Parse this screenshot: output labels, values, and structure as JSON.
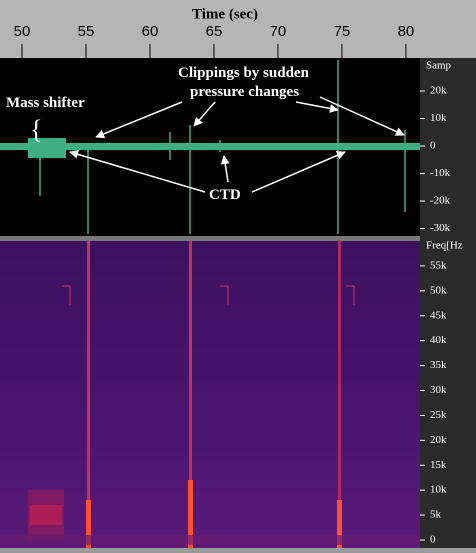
{
  "time_axis": {
    "title": "Time (sec)",
    "xlim": [
      48.28,
      81.1
    ],
    "ticks": [
      50,
      55,
      60,
      65,
      70,
      75,
      80
    ]
  },
  "waveform": {
    "axis_title": "Samp",
    "ylim": [
      -32700,
      32000
    ],
    "ticks": [
      {
        "value": 20000,
        "label": "20k"
      },
      {
        "value": 10000,
        "label": "10k"
      },
      0,
      {
        "value": -10000,
        "label": "-10k"
      },
      {
        "value": -20000,
        "label": "-20k"
      },
      {
        "value": -30000,
        "label": "-30k"
      }
    ]
  },
  "spectrogram": {
    "axis_title": "Freq[Hz",
    "ylim": [
      -1600,
      60000
    ],
    "ticks": [
      {
        "value": 55000,
        "label": "55k"
      },
      {
        "value": 50000,
        "label": "50k"
      },
      {
        "value": 45000,
        "label": "45k"
      },
      {
        "value": 40000,
        "label": "40k"
      },
      {
        "value": 35000,
        "label": "35k"
      },
      {
        "value": 30000,
        "label": "30k"
      },
      {
        "value": 25000,
        "label": "25k"
      },
      {
        "value": 20000,
        "label": "20k"
      },
      {
        "value": 15000,
        "label": "15k"
      },
      {
        "value": 10000,
        "label": "10k"
      },
      {
        "value": 5000,
        "label": "5k"
      },
      0
    ]
  },
  "annotations": {
    "mass_shifter": "Mass shifter",
    "clippings_line1": "Clippings by sudden",
    "clippings_line2": "pressure changes",
    "ctd": "CTD"
  }
}
